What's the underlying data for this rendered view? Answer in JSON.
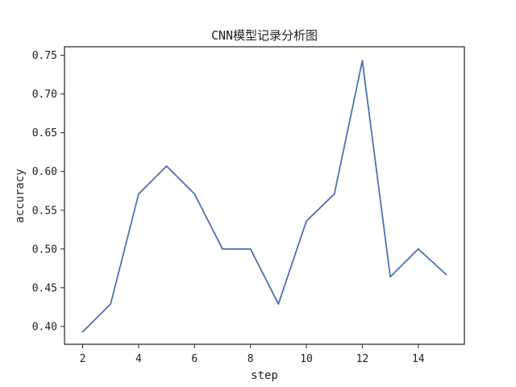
{
  "chart_data": {
    "type": "line",
    "title": "CNN模型记录分析图",
    "xlabel": "step",
    "ylabel": "accuracy",
    "xlim": [
      1.35,
      15.65
    ],
    "ylim": [
      0.377,
      0.761
    ],
    "xticks": [
      2,
      4,
      6,
      8,
      10,
      12,
      14
    ],
    "xtick_labels": [
      "2",
      "4",
      "6",
      "8",
      "10",
      "12",
      "14"
    ],
    "yticks": [
      0.4,
      0.45,
      0.5,
      0.55,
      0.6,
      0.65,
      0.7,
      0.75
    ],
    "ytick_labels": [
      "0.40",
      "0.45",
      "0.50",
      "0.55",
      "0.60",
      "0.65",
      "0.70",
      "0.75"
    ],
    "grid": false,
    "series": [
      {
        "color": "#4c72b0",
        "x": [
          2,
          3,
          4,
          5,
          6,
          7,
          8,
          9,
          10,
          11,
          12,
          13,
          14,
          15
        ],
        "y": [
          0.393,
          0.429,
          0.571,
          0.607,
          0.571,
          0.5,
          0.5,
          0.429,
          0.536,
          0.571,
          0.743,
          0.464,
          0.5,
          0.467
        ]
      }
    ]
  }
}
